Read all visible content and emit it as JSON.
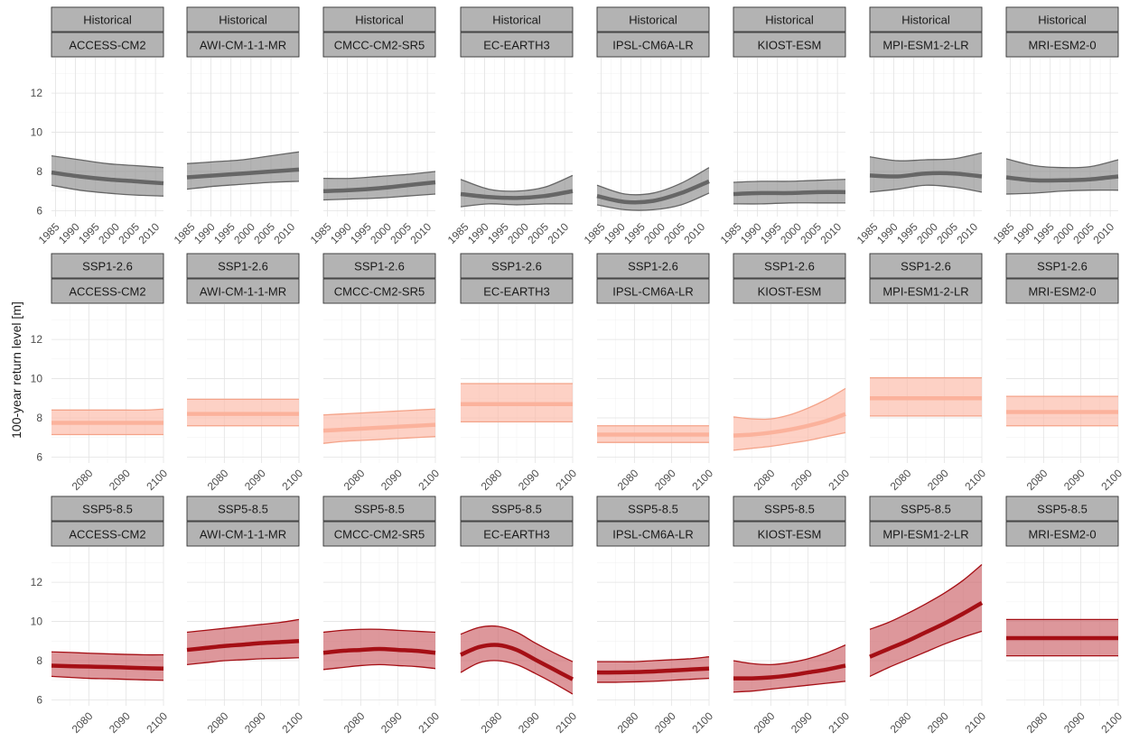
{
  "chart_data": {
    "type": "line",
    "ylabel": "100-year return level [m]",
    "ylim": [
      5.7,
      13.8
    ],
    "yticks": [
      6,
      8,
      10,
      12
    ],
    "grid": true,
    "models": [
      "ACCESS-CM2",
      "AWI-CM-1-1-MR",
      "CMCC-CM2-SR5",
      "EC-EARTH3",
      "IPSL-CM6A-LR",
      "KIOST-ESM",
      "MPI-ESM1-2-LR",
      "MRI-ESM2-0"
    ],
    "scenarios": [
      {
        "name": "Historical",
        "colors": {
          "fill": "#8c8c8c",
          "line": "#666666",
          "edge": "#666666"
        },
        "xlim": [
          1984,
          2012
        ],
        "xticks": [
          1985,
          1990,
          1995,
          2000,
          2005,
          2010
        ],
        "x": [
          1984,
          1991,
          1998,
          2005,
          2012
        ],
        "panels": [
          {
            "model": "ACCESS-CM2",
            "median": [
              7.95,
              7.75,
              7.6,
              7.5,
              7.4
            ],
            "lower": [
              7.3,
              7.05,
              6.9,
              6.8,
              6.75
            ],
            "upper": [
              8.8,
              8.6,
              8.4,
              8.3,
              8.2
            ]
          },
          {
            "model": "AWI-CM-1-1-MR",
            "median": [
              7.7,
              7.8,
              7.9,
              8.0,
              8.1
            ],
            "lower": [
              7.1,
              7.25,
              7.35,
              7.45,
              7.5
            ],
            "upper": [
              8.4,
              8.5,
              8.6,
              8.8,
              9.0
            ]
          },
          {
            "model": "CMCC-CM2-SR5",
            "median": [
              7.0,
              7.05,
              7.15,
              7.3,
              7.45
            ],
            "lower": [
              6.55,
              6.6,
              6.65,
              6.75,
              6.85
            ],
            "upper": [
              7.65,
              7.65,
              7.75,
              7.85,
              8.0
            ]
          },
          {
            "model": "EC-EARTH3",
            "median": [
              6.85,
              6.7,
              6.65,
              6.75,
              7.0
            ],
            "lower": [
              6.2,
              6.35,
              6.3,
              6.35,
              6.35
            ],
            "upper": [
              7.6,
              7.1,
              7.0,
              7.2,
              7.8
            ]
          },
          {
            "model": "IPSL-CM6A-LR",
            "median": [
              6.75,
              6.45,
              6.5,
              6.9,
              7.5
            ],
            "lower": [
              6.3,
              6.05,
              6.05,
              6.3,
              6.9
            ],
            "upper": [
              7.3,
              6.85,
              6.9,
              7.4,
              8.2
            ]
          },
          {
            "model": "KIOST-ESM",
            "median": [
              6.85,
              6.9,
              6.9,
              6.95,
              6.95
            ],
            "lower": [
              6.35,
              6.35,
              6.4,
              6.4,
              6.4
            ],
            "upper": [
              7.45,
              7.5,
              7.5,
              7.55,
              7.6
            ]
          },
          {
            "model": "MPI-ESM1-2-LR",
            "median": [
              7.8,
              7.75,
              7.9,
              7.9,
              7.75
            ],
            "lower": [
              6.95,
              7.1,
              7.3,
              7.2,
              6.95
            ],
            "upper": [
              8.75,
              8.55,
              8.6,
              8.65,
              8.95
            ]
          },
          {
            "model": "MRI-ESM2-0",
            "median": [
              7.7,
              7.55,
              7.55,
              7.6,
              7.75
            ],
            "lower": [
              6.85,
              6.9,
              7.0,
              7.05,
              7.05
            ],
            "upper": [
              8.65,
              8.3,
              8.2,
              8.25,
              8.6
            ]
          }
        ]
      },
      {
        "name": "SSP1-2.6",
        "colors": {
          "fill": "#fcb9a6",
          "line": "#fbb29c",
          "edge": "#f4a389"
        },
        "xlim": [
          2070,
          2100
        ],
        "xticks": [
          2080,
          2090,
          2100
        ],
        "x": [
          2070,
          2075,
          2080,
          2085,
          2090,
          2095,
          2100
        ],
        "panels": [
          {
            "model": "ACCESS-CM2",
            "median": [
              7.75,
              7.75,
              7.75,
              7.75,
              7.75,
              7.75,
              7.75
            ],
            "lower": [
              7.15,
              7.15,
              7.15,
              7.15,
              7.15,
              7.15,
              7.15
            ],
            "upper": [
              8.4,
              8.4,
              8.4,
              8.4,
              8.4,
              8.4,
              8.45
            ]
          },
          {
            "model": "AWI-CM-1-1-MR",
            "median": [
              8.2,
              8.2,
              8.2,
              8.2,
              8.2,
              8.2,
              8.2
            ],
            "lower": [
              7.6,
              7.6,
              7.6,
              7.6,
              7.6,
              7.6,
              7.6
            ],
            "upper": [
              8.95,
              8.95,
              8.95,
              8.95,
              8.95,
              8.95,
              8.95
            ]
          },
          {
            "model": "CMCC-CM2-SR5",
            "median": [
              7.35,
              7.4,
              7.45,
              7.5,
              7.55,
              7.6,
              7.65
            ],
            "lower": [
              6.7,
              6.8,
              6.85,
              6.9,
              6.95,
              7.0,
              7.05
            ],
            "upper": [
              8.15,
              8.2,
              8.25,
              8.3,
              8.35,
              8.4,
              8.45
            ]
          },
          {
            "model": "EC-EARTH3",
            "median": [
              8.7,
              8.7,
              8.7,
              8.7,
              8.7,
              8.7,
              8.7
            ],
            "lower": [
              7.8,
              7.8,
              7.8,
              7.8,
              7.8,
              7.8,
              7.8
            ],
            "upper": [
              9.75,
              9.75,
              9.75,
              9.75,
              9.75,
              9.75,
              9.75
            ]
          },
          {
            "model": "IPSL-CM6A-LR",
            "median": [
              7.15,
              7.15,
              7.15,
              7.15,
              7.15,
              7.15,
              7.15
            ],
            "lower": [
              6.75,
              6.75,
              6.75,
              6.75,
              6.75,
              6.75,
              6.75
            ],
            "upper": [
              7.6,
              7.6,
              7.6,
              7.6,
              7.6,
              7.6,
              7.6
            ]
          },
          {
            "model": "KIOST-ESM",
            "median": [
              7.1,
              7.15,
              7.25,
              7.4,
              7.6,
              7.85,
              8.2
            ],
            "lower": [
              6.35,
              6.45,
              6.55,
              6.7,
              6.85,
              7.05,
              7.25
            ],
            "upper": [
              8.05,
              7.95,
              7.95,
              8.15,
              8.5,
              8.95,
              9.5
            ]
          },
          {
            "model": "MPI-ESM1-2-LR",
            "median": [
              9.0,
              9.0,
              9.0,
              9.0,
              9.0,
              9.0,
              9.0
            ],
            "lower": [
              8.1,
              8.1,
              8.1,
              8.1,
              8.1,
              8.1,
              8.1
            ],
            "upper": [
              10.05,
              10.05,
              10.05,
              10.05,
              10.05,
              10.05,
              10.05
            ]
          },
          {
            "model": "MRI-ESM2-0",
            "median": [
              8.3,
              8.3,
              8.3,
              8.3,
              8.3,
              8.3,
              8.3
            ],
            "lower": [
              7.6,
              7.6,
              7.6,
              7.6,
              7.6,
              7.6,
              7.6
            ],
            "upper": [
              9.1,
              9.1,
              9.1,
              9.1,
              9.1,
              9.1,
              9.1
            ]
          }
        ]
      },
      {
        "name": "SSP5-8.5",
        "colors": {
          "fill": "#cb5f65",
          "line": "#a50f15",
          "edge": "#a50f15"
        },
        "xlim": [
          2070,
          2100
        ],
        "xticks": [
          2080,
          2090,
          2100
        ],
        "x": [
          2070,
          2075,
          2080,
          2085,
          2090,
          2095,
          2100
        ],
        "panels": [
          {
            "model": "ACCESS-CM2",
            "median": [
              7.75,
              7.72,
              7.7,
              7.68,
              7.65,
              7.62,
              7.6
            ],
            "lower": [
              7.2,
              7.15,
              7.1,
              7.08,
              7.05,
              7.02,
              7.0
            ],
            "upper": [
              8.45,
              8.42,
              8.38,
              8.35,
              8.32,
              8.3,
              8.3
            ]
          },
          {
            "model": "AWI-CM-1-1-MR",
            "median": [
              8.55,
              8.65,
              8.75,
              8.82,
              8.9,
              8.95,
              9.0
            ],
            "lower": [
              7.8,
              7.9,
              8.0,
              8.05,
              8.1,
              8.12,
              8.15
            ],
            "upper": [
              9.45,
              9.55,
              9.65,
              9.75,
              9.85,
              9.95,
              10.1
            ]
          },
          {
            "model": "CMCC-CM2-SR5",
            "median": [
              8.4,
              8.5,
              8.55,
              8.6,
              8.55,
              8.5,
              8.4
            ],
            "lower": [
              7.55,
              7.65,
              7.75,
              7.8,
              7.75,
              7.7,
              7.6
            ],
            "upper": [
              9.45,
              9.55,
              9.6,
              9.6,
              9.55,
              9.5,
              9.45
            ]
          },
          {
            "model": "EC-EARTH3",
            "median": [
              8.3,
              8.7,
              8.8,
              8.55,
              8.05,
              7.55,
              7.05
            ],
            "lower": [
              7.4,
              7.9,
              8.0,
              7.8,
              7.35,
              6.85,
              6.3
            ],
            "upper": [
              9.35,
              9.7,
              9.75,
              9.45,
              8.9,
              8.4,
              7.95
            ]
          },
          {
            "model": "IPSL-CM6A-LR",
            "median": [
              7.4,
              7.4,
              7.42,
              7.45,
              7.5,
              7.55,
              7.6
            ],
            "lower": [
              6.9,
              6.9,
              6.92,
              6.95,
              7.0,
              7.05,
              7.1
            ],
            "upper": [
              7.95,
              7.95,
              7.95,
              8.0,
              8.05,
              8.1,
              8.2
            ]
          },
          {
            "model": "KIOST-ESM",
            "median": [
              7.1,
              7.1,
              7.15,
              7.25,
              7.4,
              7.55,
              7.75
            ],
            "lower": [
              6.4,
              6.45,
              6.55,
              6.65,
              6.75,
              6.85,
              6.95
            ],
            "upper": [
              8.0,
              7.85,
              7.8,
              7.9,
              8.1,
              8.4,
              8.8
            ]
          },
          {
            "model": "MPI-ESM1-2-LR",
            "median": [
              8.2,
              8.6,
              9.0,
              9.45,
              9.9,
              10.4,
              10.95
            ],
            "lower": [
              7.2,
              7.65,
              8.05,
              8.45,
              8.85,
              9.2,
              9.5
            ],
            "upper": [
              9.6,
              9.95,
              10.4,
              10.9,
              11.45,
              12.1,
              12.9
            ]
          },
          {
            "model": "MRI-ESM2-0",
            "median": [
              9.15,
              9.15,
              9.15,
              9.15,
              9.15,
              9.15,
              9.15
            ],
            "lower": [
              8.25,
              8.25,
              8.25,
              8.25,
              8.25,
              8.25,
              8.25
            ],
            "upper": [
              10.1,
              10.1,
              10.1,
              10.1,
              10.1,
              10.1,
              10.1
            ]
          }
        ]
      }
    ]
  }
}
